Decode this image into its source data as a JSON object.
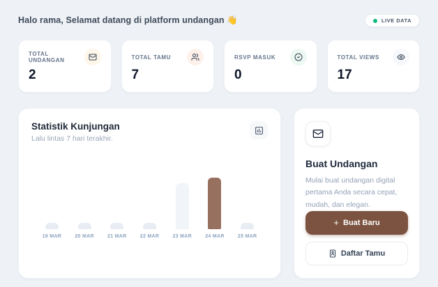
{
  "header": {
    "greeting": "Halo rama, Selamat datang di platform undangan 👋",
    "live_badge": "LIVE DATA"
  },
  "stats": {
    "cards": [
      {
        "label": "TOTAL UNDANGAN",
        "value": "2",
        "icon": "mail-icon"
      },
      {
        "label": "TOTAL TAMU",
        "value": "7",
        "icon": "users-icon"
      },
      {
        "label": "RSVP MASUK",
        "value": "0",
        "icon": "check-circle-icon"
      },
      {
        "label": "TOTAL VIEWS",
        "value": "17",
        "icon": "eye-icon"
      }
    ]
  },
  "chart_card": {
    "title": "Statistik Kunjungan",
    "subtitle": "Lalu lintas 7 hari terakhir.",
    "icon": "bar-chart-icon"
  },
  "chart_data": {
    "type": "bar",
    "title": "Statistik Kunjungan",
    "xlabel": "",
    "ylabel": "",
    "categories": [
      "19 MAR",
      "20 MAR",
      "21 MAR",
      "22 MAR",
      "23 MAR",
      "24 MAR",
      "25 MAR"
    ],
    "values": [
      0,
      0,
      0,
      0,
      8,
      9,
      0
    ],
    "ylim": [
      0,
      9
    ],
    "grid": false,
    "legend": "none",
    "highlight_index": 5,
    "bar_colors": {
      "zero": "#e8edf4",
      "default": "#f1f5f9",
      "highlight": "#97705f"
    }
  },
  "cta_card": {
    "icon": "mail-icon",
    "title": "Buat Undangan",
    "description": "Mulai buat undangan digital pertama Anda secara cepat, mudah, dan elegan.",
    "primary_button_prefix": "+",
    "primary_button": "Buat Baru",
    "secondary_button": "Daftar Tamu",
    "secondary_button_icon": "contact-book-icon"
  },
  "colors": {
    "page_bg": "#eef2f6",
    "accent_brown": "#7b5340",
    "bar_brown": "#97705f",
    "live_dot_green": "#10b981"
  }
}
